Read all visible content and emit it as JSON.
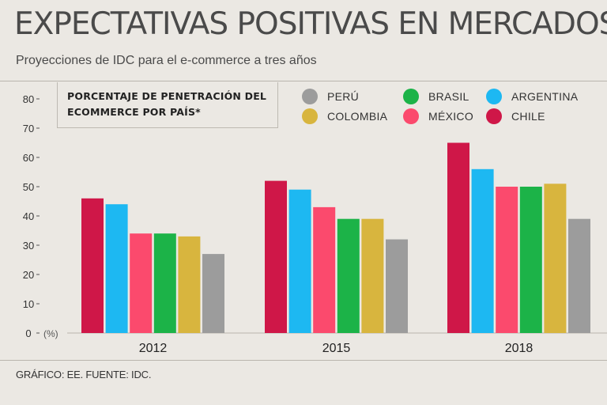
{
  "header": {
    "title": "EXPECTATIVAS POSITIVAS EN MERCADOS",
    "subtitle": "Proyecciones de IDC para el e-commerce a tres años"
  },
  "footer": {
    "source": "GRÁFICO: EE. FUENTE: IDC."
  },
  "legend_box": {
    "title": "PORCENTAJE DE PENETRACIÓN DEL ECOMMERCE POR PAÍS*"
  },
  "chart_data": {
    "type": "bar",
    "title": "PORCENTAJE DE PENETRACIÓN DEL ECOMMERCE POR PAÍS*",
    "categories": [
      "2012",
      "2015",
      "2018"
    ],
    "yunit": "(%)",
    "ylim": [
      0,
      80
    ],
    "yticks": [
      0,
      10,
      20,
      30,
      40,
      50,
      60,
      70,
      80
    ],
    "grid": false,
    "legend_position": "top-right",
    "series": [
      {
        "name": "CHILE",
        "color": "#cf1748",
        "values": [
          46,
          52,
          65
        ]
      },
      {
        "name": "ARGENTINA",
        "color": "#1db8f2",
        "values": [
          44,
          49,
          56
        ]
      },
      {
        "name": "MÉXICO",
        "color": "#fb4a6d",
        "values": [
          34,
          43,
          50
        ]
      },
      {
        "name": "BRASIL",
        "color": "#1cb348",
        "values": [
          34,
          39,
          50
        ]
      },
      {
        "name": "COLOMBIA",
        "color": "#d8b53e",
        "values": [
          33,
          39,
          51
        ]
      },
      {
        "name": "PERÚ",
        "color": "#9c9c9c",
        "values": [
          27,
          32,
          39
        ]
      }
    ],
    "legend_order": [
      "PERÚ",
      "BRASIL",
      "ARGENTINA",
      "COLOMBIA",
      "MÉXICO",
      "CHILE"
    ]
  }
}
